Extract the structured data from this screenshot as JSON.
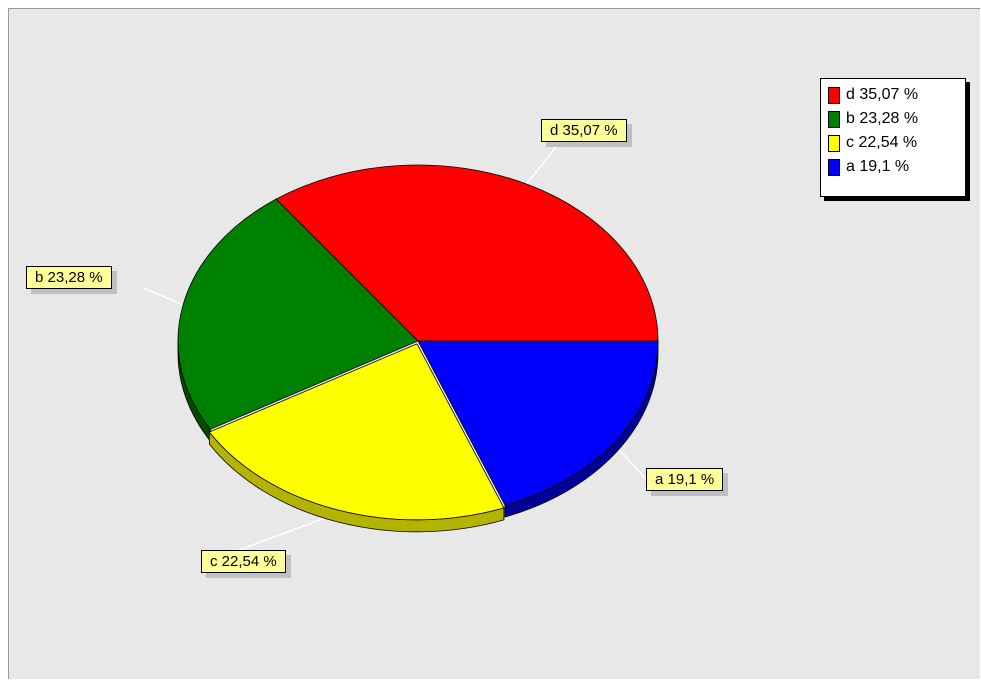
{
  "chart_data": {
    "type": "pie",
    "title": "",
    "slices": [
      {
        "name": "d",
        "value": 35.07,
        "label": "d 35,07 %",
        "color": "#ff0000"
      },
      {
        "name": "b",
        "value": 23.28,
        "label": "b 23,28 %",
        "color": "#008000"
      },
      {
        "name": "c",
        "value": 22.54,
        "label": "c 22,54 %",
        "color": "#ffff00"
      },
      {
        "name": "a",
        "value": 19.1,
        "label": "a 19,1 %",
        "color": "#0000ff"
      }
    ],
    "legend": {
      "placement": "top-right",
      "entries": [
        "d 35,07 %",
        "b 23,28 %",
        "c 22,54 %",
        "a 19,1 %"
      ]
    },
    "style": "3d-tilted",
    "exploded_slice": "c"
  }
}
